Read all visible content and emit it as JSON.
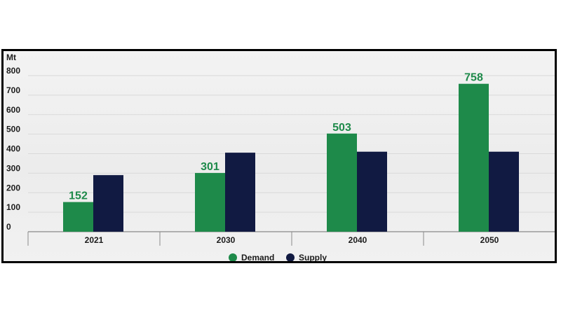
{
  "chart_data": {
    "type": "bar",
    "unit": "Mt",
    "categories": [
      "2021",
      "2030",
      "2040",
      "2050"
    ],
    "series": [
      {
        "name": "Demand",
        "values": [
          152,
          301,
          503,
          758
        ],
        "color": "#1e8a4a"
      },
      {
        "name": "Supply",
        "values": [
          290,
          405,
          410,
          410
        ],
        "color": "#111a42"
      }
    ],
    "data_labels": [
      "152",
      "301",
      "503",
      "758"
    ],
    "yticks": [
      "0",
      "100",
      "200",
      "300",
      "400",
      "500",
      "600",
      "700",
      "800"
    ],
    "ylim": [
      0,
      800
    ],
    "grid": true,
    "legend_position": "bottom"
  }
}
